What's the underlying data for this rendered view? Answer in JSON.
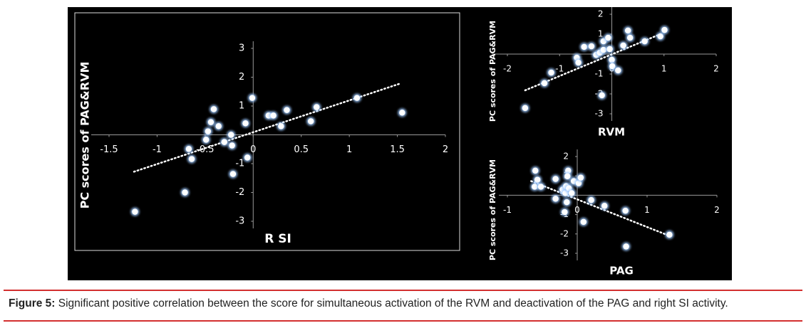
{
  "chart_data": [
    {
      "type": "scatter",
      "x_label": "R SI",
      "y_label": "PC scores of PAG&RVM",
      "x": [
        -1.23,
        -0.71,
        -0.67,
        -0.64,
        -0.41,
        -0.44,
        -0.47,
        -0.49,
        -0.36,
        -0.3,
        -0.23,
        -0.22,
        -0.21,
        -0.08,
        -0.06,
        -0.01,
        0.16,
        0.21,
        0.29,
        0.35,
        0.6,
        0.66,
        1.08,
        1.55
      ],
      "values": [
        -2.67,
        -2.0,
        -0.49,
        -0.84,
        0.89,
        0.44,
        0.12,
        -0.17,
        0.3,
        -0.25,
        0.0,
        -0.37,
        -1.36,
        0.4,
        -0.79,
        1.28,
        0.67,
        0.67,
        0.3,
        0.86,
        0.47,
        0.96,
        1.28,
        0.77
      ],
      "trendline": {
        "x": [
          -1.24,
          1.53
        ],
        "y": [
          -1.28,
          1.78
        ]
      },
      "xlim": [
        -1.5,
        2
      ],
      "ylim": [
        -3,
        3
      ],
      "xticks": [
        -1.5,
        -1,
        -0.5,
        0,
        0.5,
        1,
        1.5,
        2
      ],
      "yticks": [
        3,
        2,
        1,
        -1,
        -2,
        -3
      ],
      "color": "#ffffff",
      "frame": true
    },
    {
      "type": "scatter",
      "x_label": "RVM",
      "y_label": "PC scores of PAG&RVM",
      "x": [
        -1.66,
        -1.29,
        -1.16,
        -0.67,
        -0.64,
        -0.53,
        -0.39,
        -0.3,
        -0.23,
        -0.16,
        -0.16,
        -0.19,
        -0.07,
        -0.04,
        0.0,
        0.01,
        0.12,
        0.22,
        0.31,
        0.35,
        0.63,
        0.93,
        1.01
      ],
      "values": [
        -2.71,
        -1.46,
        -0.93,
        -0.18,
        -0.43,
        0.36,
        0.39,
        -0.04,
        0.07,
        0.21,
        0.64,
        -2.07,
        0.82,
        0.25,
        -0.29,
        -0.61,
        -0.82,
        0.43,
        1.18,
        0.82,
        0.64,
        0.89,
        1.21
      ],
      "trendline": {
        "x": [
          -1.66,
          0.93
        ],
        "y": [
          -1.82,
          1.0
        ]
      },
      "xlim": [
        -2,
        2
      ],
      "ylim": [
        -3,
        2
      ],
      "xticks": [
        -2,
        -1,
        0,
        1,
        2
      ],
      "yticks": [
        2,
        1,
        -1,
        -2,
        -3
      ],
      "color": "#ffffff",
      "frame": false
    },
    {
      "type": "scatter",
      "x_label": "PAG",
      "y_label": "PC scores of PAG&RVM",
      "x": [
        -0.6,
        -0.57,
        -0.61,
        -0.52,
        -0.31,
        -0.31,
        -0.21,
        -0.17,
        -0.16,
        -0.13,
        -0.14,
        -0.12,
        -0.15,
        -0.18,
        -0.08,
        -0.05,
        0.02,
        0.05,
        0.09,
        0.2,
        0.39,
        0.69,
        1.32,
        0.7
      ],
      "values": [
        1.27,
        0.8,
        0.44,
        0.44,
        0.84,
        -0.18,
        0.29,
        0.11,
        0.47,
        1.27,
        0.98,
        0.36,
        -0.36,
        -0.87,
        0.11,
        0.73,
        0.62,
        0.91,
        -1.38,
        -0.25,
        -0.55,
        -0.8,
        -2.04,
        -2.65
      ],
      "trendline": {
        "x": [
          -0.66,
          1.3
        ],
        "y": [
          0.73,
          -2.07
        ]
      },
      "xlim": [
        -1,
        2
      ],
      "ylim": [
        -3,
        2
      ],
      "xticks": [
        -1,
        0,
        1,
        2
      ],
      "yticks": [
        2,
        1,
        -1,
        -2,
        -3
      ],
      "color": "#ffffff",
      "frame": false
    }
  ],
  "caption": {
    "label": "Figure 5:",
    "text": "Significant positive correlation between the score for simultaneous activation of the RVM and deactivation of the PAG and right SI activity."
  }
}
